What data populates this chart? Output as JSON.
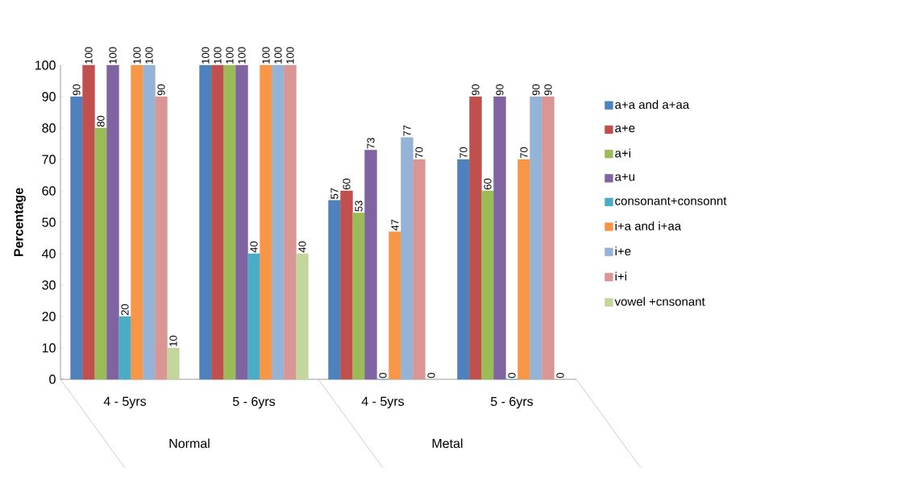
{
  "chart_data": {
    "type": "bar",
    "ylabel": "Percentage",
    "categories": [
      "4 - 5yrs",
      "5 - 6yrs",
      "4 - 5yrs",
      "5 - 6yrs"
    ],
    "annotations": [
      "Normal",
      "Metal"
    ],
    "series": [
      {
        "name": "a+a and a+aa",
        "color": "#4f81bd",
        "values": [
          90,
          100,
          57,
          70
        ]
      },
      {
        "name": "a+e",
        "color": "#c0504d",
        "values": [
          100,
          100,
          60,
          90
        ]
      },
      {
        "name": "a+i",
        "color": "#9bbb59",
        "values": [
          80,
          100,
          53,
          60
        ]
      },
      {
        "name": "a+u",
        "color": "#8064a2",
        "values": [
          100,
          100,
          73,
          90
        ]
      },
      {
        "name": "consonant+consonnt",
        "color": "#4bacc6",
        "values": [
          20,
          40,
          0,
          0
        ]
      },
      {
        "name": "i+a and i+aa",
        "color": "#f79646",
        "values": [
          100,
          100,
          47,
          70
        ]
      },
      {
        "name": "i+e",
        "color": "#95b3d7",
        "values": [
          100,
          100,
          77,
          90
        ]
      },
      {
        "name": "i+i",
        "color": "#d99694",
        "values": [
          90,
          100,
          70,
          90
        ]
      },
      {
        "name": "vowel +cnsonant",
        "color": "#c3d69b",
        "values": [
          10,
          40,
          0,
          0
        ]
      }
    ],
    "ylim": [
      0,
      100
    ],
    "yticks": [
      0,
      10,
      20,
      30,
      40,
      50,
      60,
      70,
      80,
      90,
      100
    ],
    "data_labels": true,
    "legend": "right",
    "grid": false
  }
}
